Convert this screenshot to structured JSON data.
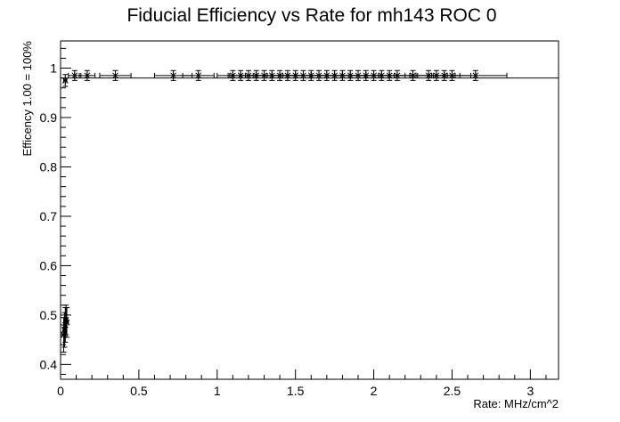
{
  "chart_data": {
    "type": "scatter",
    "title": "Fiducial Efficiency vs Rate for mh143 ROC 0",
    "xlabel": "Rate: MHz/cm^2",
    "ylabel": "Efficency 1.00 = 100%",
    "xlim": [
      0,
      3.18
    ],
    "ylim": [
      0.37,
      1.055
    ],
    "x_ticks": [
      0,
      0.5,
      1,
      1.5,
      2,
      2.5,
      3
    ],
    "x_tick_labels": [
      "0",
      "0.5",
      "1",
      "1.5",
      "2",
      "2.5",
      "3"
    ],
    "y_ticks": [
      0.4,
      0.5,
      0.6,
      0.7,
      0.8,
      0.9,
      1
    ],
    "y_tick_labels": [
      "0.4",
      "0.5",
      "0.6",
      "0.7",
      "0.8",
      "0.9",
      "1"
    ],
    "grid": false,
    "legend": "none",
    "reference_line": {
      "y": 0.98,
      "x_range": [
        0,
        3.18
      ]
    },
    "series": [
      {
        "marker": "star",
        "points": [
          {
            "x": 0.02,
            "y": 0.46,
            "ex": 0.01,
            "ey": 0.035
          },
          {
            "x": 0.025,
            "y": 0.47,
            "ex": 0.01,
            "ey": 0.035
          },
          {
            "x": 0.03,
            "y": 0.48,
            "ex": 0.01,
            "ey": 0.035
          },
          {
            "x": 0.035,
            "y": 0.49,
            "ex": 0.01,
            "ey": 0.03
          },
          {
            "x": 0.04,
            "y": 0.485,
            "ex": 0.01,
            "ey": 0.03
          },
          {
            "x": 0.03,
            "y": 0.975,
            "ex": 0.01,
            "ey": 0.012
          },
          {
            "x": 0.09,
            "y": 0.985,
            "ex": 0.04,
            "ey": 0.01
          },
          {
            "x": 0.17,
            "y": 0.985,
            "ex": 0.05,
            "ey": 0.01
          },
          {
            "x": 0.35,
            "y": 0.985,
            "ex": 0.1,
            "ey": 0.01
          },
          {
            "x": 0.72,
            "y": 0.985,
            "ex": 0.12,
            "ey": 0.01
          },
          {
            "x": 0.88,
            "y": 0.985,
            "ex": 0.1,
            "ey": 0.01
          },
          {
            "x": 1.1,
            "y": 0.985,
            "ex": 0.1,
            "ey": 0.01
          },
          {
            "x": 1.15,
            "y": 0.985,
            "ex": 0.08,
            "ey": 0.01
          },
          {
            "x": 1.2,
            "y": 0.985,
            "ex": 0.12,
            "ey": 0.01
          },
          {
            "x": 1.25,
            "y": 0.985,
            "ex": 0.1,
            "ey": 0.01
          },
          {
            "x": 1.3,
            "y": 0.985,
            "ex": 0.12,
            "ey": 0.01
          },
          {
            "x": 1.35,
            "y": 0.985,
            "ex": 0.15,
            "ey": 0.01
          },
          {
            "x": 1.4,
            "y": 0.985,
            "ex": 0.15,
            "ey": 0.01
          },
          {
            "x": 1.45,
            "y": 0.985,
            "ex": 0.15,
            "ey": 0.01
          },
          {
            "x": 1.5,
            "y": 0.985,
            "ex": 0.15,
            "ey": 0.01
          },
          {
            "x": 1.55,
            "y": 0.985,
            "ex": 0.15,
            "ey": 0.01
          },
          {
            "x": 1.6,
            "y": 0.985,
            "ex": 0.15,
            "ey": 0.01
          },
          {
            "x": 1.65,
            "y": 0.985,
            "ex": 0.15,
            "ey": 0.01
          },
          {
            "x": 1.7,
            "y": 0.985,
            "ex": 0.15,
            "ey": 0.01
          },
          {
            "x": 1.75,
            "y": 0.985,
            "ex": 0.15,
            "ey": 0.01
          },
          {
            "x": 1.8,
            "y": 0.985,
            "ex": 0.15,
            "ey": 0.01
          },
          {
            "x": 1.85,
            "y": 0.985,
            "ex": 0.15,
            "ey": 0.01
          },
          {
            "x": 1.9,
            "y": 0.985,
            "ex": 0.15,
            "ey": 0.01
          },
          {
            "x": 1.95,
            "y": 0.985,
            "ex": 0.15,
            "ey": 0.01
          },
          {
            "x": 2.0,
            "y": 0.985,
            "ex": 0.15,
            "ey": 0.01
          },
          {
            "x": 2.05,
            "y": 0.985,
            "ex": 0.15,
            "ey": 0.01
          },
          {
            "x": 2.1,
            "y": 0.985,
            "ex": 0.15,
            "ey": 0.01
          },
          {
            "x": 2.15,
            "y": 0.985,
            "ex": 0.12,
            "ey": 0.01
          },
          {
            "x": 2.25,
            "y": 0.985,
            "ex": 0.12,
            "ey": 0.01
          },
          {
            "x": 2.35,
            "y": 0.985,
            "ex": 0.12,
            "ey": 0.01
          },
          {
            "x": 2.4,
            "y": 0.985,
            "ex": 0.12,
            "ey": 0.01
          },
          {
            "x": 2.45,
            "y": 0.985,
            "ex": 0.1,
            "ey": 0.01
          },
          {
            "x": 2.5,
            "y": 0.985,
            "ex": 0.12,
            "ey": 0.01
          },
          {
            "x": 2.65,
            "y": 0.985,
            "ex": 0.2,
            "ey": 0.01
          }
        ]
      }
    ]
  }
}
